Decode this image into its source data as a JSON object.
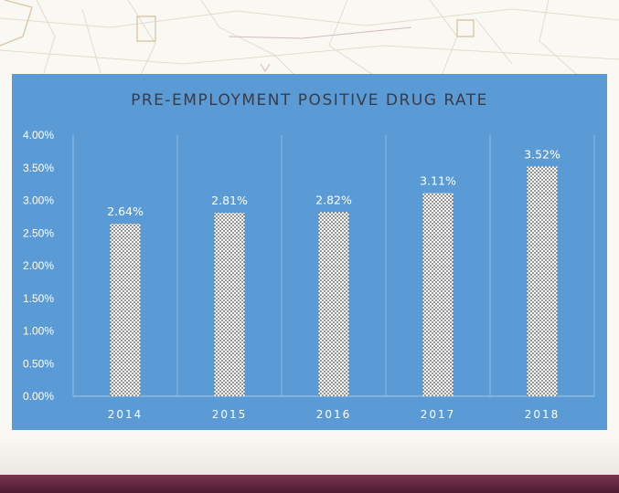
{
  "chart_data": {
    "type": "bar",
    "title": "PRE-EMPLOYMENT POSITIVE DRUG RATE",
    "categories": [
      "2014",
      "2015",
      "2016",
      "2017",
      "2018"
    ],
    "values": [
      2.64,
      2.81,
      2.82,
      3.11,
      3.52
    ],
    "data_labels": [
      "2.64%",
      "2.81%",
      "2.82%",
      "3.11%",
      "3.52%"
    ],
    "y_ticks": [
      "0.00%",
      "0.50%",
      "1.00%",
      "1.50%",
      "2.00%",
      "2.50%",
      "3.00%",
      "3.50%",
      "4.00%"
    ],
    "ylim": [
      0,
      4
    ],
    "xlabel": "",
    "ylabel": "",
    "grid": "vertical separators",
    "colors": {
      "panel": "#5b9bd5",
      "bar_pattern": "#4a4a4a",
      "bar_fill": "#ffffff",
      "footer": "#5e2540"
    }
  }
}
